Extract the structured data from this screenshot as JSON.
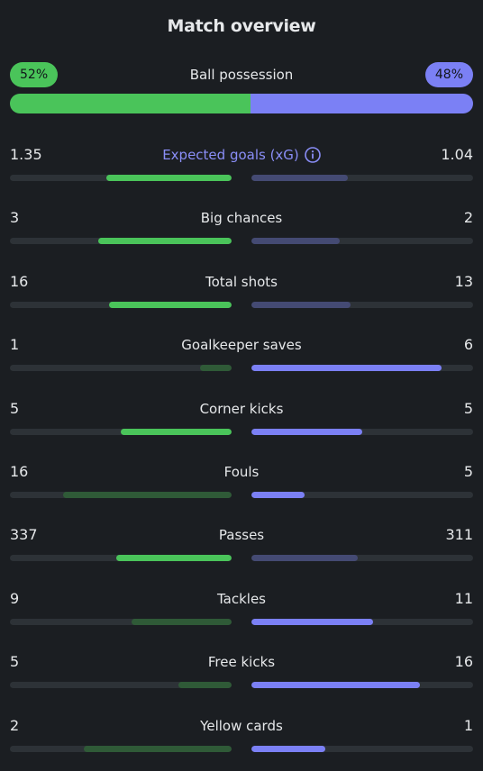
{
  "header": {
    "title": "Match overview"
  },
  "possession": {
    "label": "Ball possession",
    "home": "52%",
    "away": "48%",
    "home_fraction": 0.52,
    "away_fraction": 0.48
  },
  "colors": {
    "home_strong": "#4ac45a",
    "home_weak": "#2f5a37",
    "away_strong": "#7b80f5",
    "away_weak": "#444a73",
    "track": "#2d3237",
    "accent": "#8a8ef7"
  },
  "stats": [
    {
      "label": "Expected goals (xG)",
      "home": "1.35",
      "away": "1.04",
      "home_fraction": 0.565,
      "away_fraction": 0.435,
      "home_winner": true,
      "accent": true,
      "icon": "info-icon"
    },
    {
      "label": "Big chances",
      "home": "3",
      "away": "2",
      "home_fraction": 0.6,
      "away_fraction": 0.4,
      "home_winner": true
    },
    {
      "label": "Total shots",
      "home": "16",
      "away": "13",
      "home_fraction": 0.552,
      "away_fraction": 0.448,
      "home_winner": true
    },
    {
      "label": "Goalkeeper saves",
      "home": "1",
      "away": "6",
      "home_fraction": 0.143,
      "away_fraction": 0.857,
      "home_winner": false
    },
    {
      "label": "Corner kicks",
      "home": "5",
      "away": "5",
      "home_fraction": 0.5,
      "away_fraction": 0.5,
      "tie": true
    },
    {
      "label": "Fouls",
      "home": "16",
      "away": "5",
      "home_fraction": 0.762,
      "away_fraction": 0.238,
      "home_winner": false
    },
    {
      "label": "Passes",
      "home": "337",
      "away": "311",
      "home_fraction": 0.52,
      "away_fraction": 0.48,
      "home_winner": true
    },
    {
      "label": "Tackles",
      "home": "9",
      "away": "11",
      "home_fraction": 0.45,
      "away_fraction": 0.55,
      "home_winner": false
    },
    {
      "label": "Free kicks",
      "home": "5",
      "away": "16",
      "home_fraction": 0.238,
      "away_fraction": 0.762,
      "home_winner": false
    },
    {
      "label": "Yellow cards",
      "home": "2",
      "away": "1",
      "home_fraction": 0.667,
      "away_fraction": 0.333,
      "home_winner": false
    }
  ]
}
